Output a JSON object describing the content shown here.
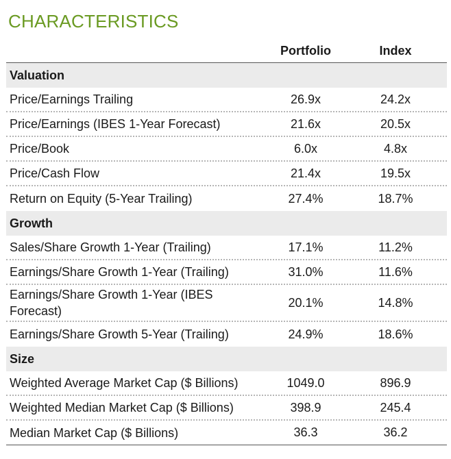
{
  "title": "CHARACTERISTICS",
  "columns": {
    "portfolio": "Portfolio",
    "index": "Index"
  },
  "sections": [
    {
      "name": "Valuation",
      "rows": [
        {
          "label": "Price/Earnings Trailing",
          "portfolio": "26.9x",
          "index": "24.2x"
        },
        {
          "label": "Price/Earnings (IBES 1-Year Forecast)",
          "portfolio": "21.6x",
          "index": "20.5x"
        },
        {
          "label": "Price/Book",
          "portfolio": "6.0x",
          "index": "4.8x"
        },
        {
          "label": "Price/Cash Flow",
          "portfolio": "21.4x",
          "index": "19.5x"
        },
        {
          "label": "Return on Equity (5-Year Trailing)",
          "portfolio": "27.4%",
          "index": "18.7%"
        }
      ]
    },
    {
      "name": "Growth",
      "rows": [
        {
          "label": "Sales/Share Growth 1-Year (Trailing)",
          "portfolio": "17.1%",
          "index": "11.2%"
        },
        {
          "label": "Earnings/Share Growth 1-Year (Trailing)",
          "portfolio": "31.0%",
          "index": "11.6%"
        },
        {
          "label": "Earnings/Share Growth 1-Year (IBES Forecast)",
          "portfolio": "20.1%",
          "index": "14.8%"
        },
        {
          "label": "Earnings/Share Growth 5-Year (Trailing)",
          "portfolio": "24.9%",
          "index": "18.6%"
        }
      ]
    },
    {
      "name": "Size",
      "rows": [
        {
          "label": "Weighted Average Market Cap ($ Billions)",
          "portfolio": "1049.0",
          "index": "896.9"
        },
        {
          "label": "Weighted Median Market Cap ($ Billions)",
          "portfolio": "398.9",
          "index": "245.4"
        },
        {
          "label": "Median Market Cap ($ Billions)",
          "portfolio": "36.3",
          "index": "36.2"
        }
      ]
    }
  ]
}
